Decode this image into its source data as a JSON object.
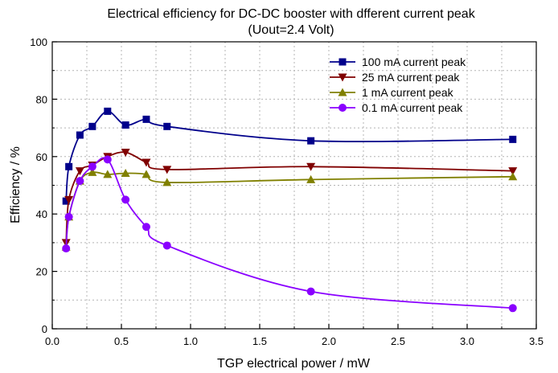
{
  "chart_data": {
    "type": "line",
    "title": "Electrical efficiency for DC-DC booster with dfferent current peak",
    "subtitle": "(Uout=2.4 Volt)",
    "xlabel": "TGP electrical power / mW",
    "ylabel": "Efficiency / %",
    "xlim": [
      0.0,
      3.5
    ],
    "ylim": [
      0,
      100
    ],
    "xticks": [
      "0.0",
      "0.5",
      "1.0",
      "1.5",
      "2.0",
      "2.5",
      "3.0",
      "3.5"
    ],
    "yticks": [
      "0",
      "20",
      "40",
      "60",
      "80",
      "100"
    ],
    "grid": true,
    "legend_position": "top-right",
    "series": [
      {
        "name": "100 mA current peak",
        "color": "#00008b",
        "marker": "square",
        "x": [
          0.1,
          0.12,
          0.2,
          0.29,
          0.4,
          0.53,
          0.68,
          0.83,
          1.87,
          3.33
        ],
        "y": [
          44.5,
          56.5,
          67.5,
          70.5,
          75.8,
          71.0,
          73.0,
          70.5,
          65.5,
          66.0
        ]
      },
      {
        "name": "25 mA current peak",
        "color": "#800000",
        "marker": "triangle-down",
        "x": [
          0.1,
          0.12,
          0.2,
          0.29,
          0.4,
          0.53,
          0.68,
          0.83,
          1.87,
          3.33
        ],
        "y": [
          30.0,
          45.0,
          55.0,
          57.0,
          60.0,
          61.5,
          58.0,
          55.5,
          56.5,
          55.0
        ]
      },
      {
        "name": "1 mA current peak",
        "color": "#808000",
        "marker": "triangle-up",
        "x": [
          0.1,
          0.12,
          0.2,
          0.29,
          0.4,
          0.53,
          0.68,
          0.83,
          1.87,
          3.33
        ],
        "y": [
          28.5,
          39.0,
          51.5,
          54.5,
          53.8,
          54.2,
          53.8,
          51.0,
          52.0,
          53.0
        ]
      },
      {
        "name": "0.1 mA current peak",
        "color": "#8a00ff",
        "marker": "circle",
        "x": [
          0.1,
          0.12,
          0.2,
          0.29,
          0.4,
          0.53,
          0.68,
          0.83,
          1.87,
          3.33
        ],
        "y": [
          28.0,
          39.0,
          51.5,
          56.5,
          59.0,
          45.0,
          35.5,
          29.0,
          13.0,
          7.2
        ]
      }
    ]
  }
}
